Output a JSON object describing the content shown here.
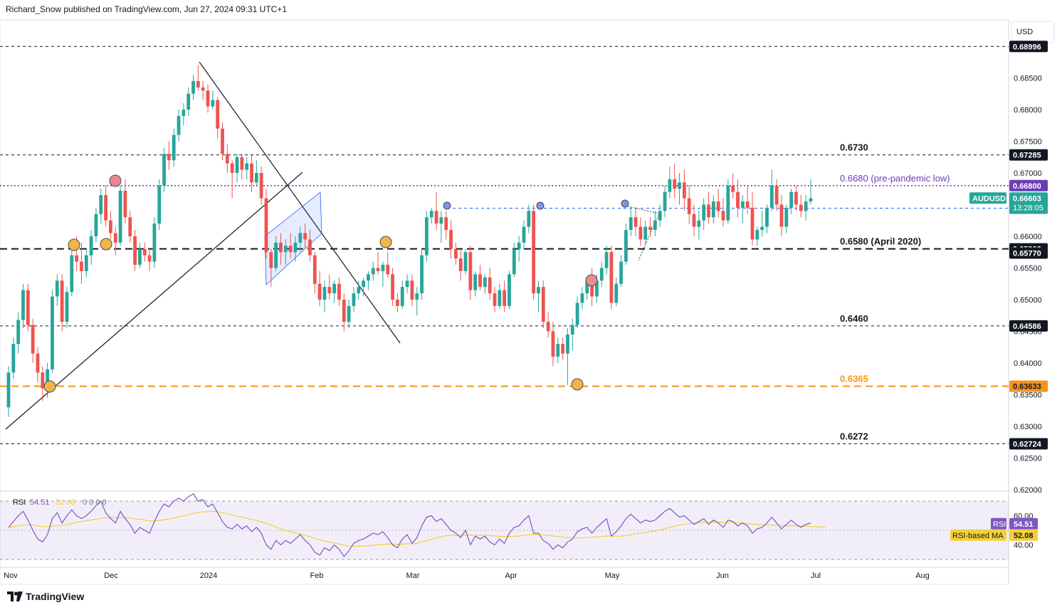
{
  "header": {
    "publisher": "Richard_Snow published on TradingView.com, Jun 27, 2024 09:31 UTC+1"
  },
  "footer": {
    "brand": "TradingView"
  },
  "currency": "USD",
  "colors": {
    "up": "#26a69a",
    "down": "#ef5350",
    "fib_purple": "#6a3db8",
    "orange": "#f7931a",
    "rsi": "#7e57c2",
    "rsi_ma": "#f3d03a",
    "blue_tag": "#2962ff"
  },
  "chart_data": {
    "type": "candlestick",
    "symbol": "AUDUSD",
    "last_price": "0.66603",
    "countdown": "13:28:05",
    "y_range": [
      0.6165,
      0.692
    ],
    "price_ticks": [
      "0.68500",
      "0.68000",
      "0.67500",
      "0.67000",
      "0.66000",
      "0.65500",
      "0.65000",
      "0.64500",
      "0.64000",
      "0.63500",
      "0.63000",
      "0.62500",
      "0.62000"
    ],
    "x_labels": [
      "Nov",
      "Dec",
      "2024",
      "Feb",
      "Mar",
      "Apr",
      "May",
      "Jun",
      "Jul",
      "Aug"
    ],
    "levels": [
      {
        "value": 0.68996,
        "tag": "0.68996",
        "label": "",
        "style": "dashed-thin",
        "color": "#131722"
      },
      {
        "value": 0.67285,
        "tag": "0.67285",
        "label": "0.6730",
        "style": "dashed-thin",
        "color": "#131722"
      },
      {
        "value": 0.668,
        "tag": "0.66800",
        "label": "0.6680 (pre-pandemic low)",
        "style": "dotted",
        "color": "#6a3db8"
      },
      {
        "value": 0.66444,
        "tag": "0.66444",
        "label": "",
        "style": "dashed-blue",
        "color": "#2962ff"
      },
      {
        "value": 0.65802,
        "tag": "0.65802",
        "label": "0.6580 (April 2020)",
        "style": "dashed-thick",
        "color": "#131722"
      },
      {
        "value": 0.64586,
        "tag": "0.64586",
        "label": "0.6460",
        "style": "dashed-thin",
        "color": "#131722"
      },
      {
        "value": 0.63633,
        "tag": "0.63633",
        "label": "0.6365",
        "style": "dashed-orange",
        "color": "#f7931a"
      },
      {
        "value": 0.62724,
        "tag": "0.62724",
        "label": "0.6272",
        "style": "dashed-thin",
        "color": "#131722"
      }
    ],
    "extra_tag": "0.65770",
    "candles": [
      [
        0.633,
        0.6395,
        0.6315,
        0.6385
      ],
      [
        0.6385,
        0.644,
        0.6375,
        0.643
      ],
      [
        0.643,
        0.648,
        0.6415,
        0.6468
      ],
      [
        0.6468,
        0.6525,
        0.6455,
        0.6515
      ],
      [
        0.6515,
        0.6525,
        0.645,
        0.646
      ],
      [
        0.646,
        0.647,
        0.64,
        0.6415
      ],
      [
        0.6415,
        0.6425,
        0.637,
        0.6385
      ],
      [
        0.6385,
        0.6395,
        0.634,
        0.636
      ],
      [
        0.636,
        0.64,
        0.6345,
        0.639
      ],
      [
        0.639,
        0.6515,
        0.6385,
        0.6505
      ],
      [
        0.6505,
        0.654,
        0.649,
        0.653
      ],
      [
        0.653,
        0.654,
        0.645,
        0.6465
      ],
      [
        0.6465,
        0.652,
        0.6455,
        0.6512
      ],
      [
        0.6512,
        0.658,
        0.6505,
        0.657
      ],
      [
        0.657,
        0.66,
        0.6545,
        0.656
      ],
      [
        0.656,
        0.659,
        0.6525,
        0.6545
      ],
      [
        0.6545,
        0.658,
        0.6535,
        0.657
      ],
      [
        0.657,
        0.661,
        0.6555,
        0.66
      ],
      [
        0.66,
        0.6645,
        0.659,
        0.6635
      ],
      [
        0.6635,
        0.6675,
        0.662,
        0.6665
      ],
      [
        0.6665,
        0.668,
        0.6615,
        0.6625
      ],
      [
        0.6625,
        0.664,
        0.6595,
        0.6605
      ],
      [
        0.6605,
        0.6615,
        0.657,
        0.659
      ],
      [
        0.659,
        0.668,
        0.6585,
        0.6672
      ],
      [
        0.6672,
        0.669,
        0.662,
        0.663
      ],
      [
        0.663,
        0.664,
        0.659,
        0.66
      ],
      [
        0.66,
        0.661,
        0.6545,
        0.6555
      ],
      [
        0.6555,
        0.659,
        0.655,
        0.658
      ],
      [
        0.658,
        0.659,
        0.656,
        0.657
      ],
      [
        0.657,
        0.658,
        0.6545,
        0.656
      ],
      [
        0.656,
        0.663,
        0.655,
        0.662
      ],
      [
        0.662,
        0.669,
        0.661,
        0.668
      ],
      [
        0.668,
        0.674,
        0.667,
        0.673
      ],
      [
        0.673,
        0.675,
        0.6705,
        0.672
      ],
      [
        0.672,
        0.677,
        0.671,
        0.676
      ],
      [
        0.676,
        0.68,
        0.675,
        0.679
      ],
      [
        0.679,
        0.681,
        0.6775,
        0.68
      ],
      [
        0.68,
        0.6835,
        0.679,
        0.6825
      ],
      [
        0.6825,
        0.6855,
        0.6815,
        0.6845
      ],
      [
        0.6845,
        0.687,
        0.683,
        0.6835
      ],
      [
        0.6835,
        0.6845,
        0.6815,
        0.683
      ],
      [
        0.683,
        0.684,
        0.6795,
        0.6805
      ],
      [
        0.6805,
        0.683,
        0.68,
        0.6815
      ],
      [
        0.6815,
        0.682,
        0.6755,
        0.677
      ],
      [
        0.677,
        0.678,
        0.672,
        0.673
      ],
      [
        0.673,
        0.6745,
        0.67,
        0.6715
      ],
      [
        0.6715,
        0.672,
        0.666,
        0.67
      ],
      [
        0.67,
        0.673,
        0.6685,
        0.6725
      ],
      [
        0.6725,
        0.673,
        0.669,
        0.6705
      ],
      [
        0.6705,
        0.6725,
        0.669,
        0.6715
      ],
      [
        0.6715,
        0.673,
        0.667,
        0.6685
      ],
      [
        0.6685,
        0.672,
        0.668,
        0.67
      ],
      [
        0.67,
        0.671,
        0.665,
        0.666
      ],
      [
        0.666,
        0.6675,
        0.6565,
        0.6575
      ],
      [
        0.6575,
        0.658,
        0.652,
        0.655
      ],
      [
        0.655,
        0.66,
        0.6545,
        0.659
      ],
      [
        0.659,
        0.6605,
        0.6555,
        0.6575
      ],
      [
        0.6575,
        0.6595,
        0.6555,
        0.6585
      ],
      [
        0.6585,
        0.6605,
        0.6565,
        0.6575
      ],
      [
        0.6575,
        0.66,
        0.656,
        0.659
      ],
      [
        0.659,
        0.6615,
        0.6575,
        0.6605
      ],
      [
        0.6605,
        0.662,
        0.658,
        0.6595
      ],
      [
        0.6595,
        0.661,
        0.656,
        0.657
      ],
      [
        0.657,
        0.6575,
        0.651,
        0.6525
      ],
      [
        0.6525,
        0.6545,
        0.649,
        0.65
      ],
      [
        0.65,
        0.653,
        0.648,
        0.652
      ],
      [
        0.652,
        0.654,
        0.65,
        0.651
      ],
      [
        0.651,
        0.653,
        0.6495,
        0.6525
      ],
      [
        0.6525,
        0.6535,
        0.649,
        0.65
      ],
      [
        0.65,
        0.651,
        0.645,
        0.6465
      ],
      [
        0.6465,
        0.65,
        0.6455,
        0.649
      ],
      [
        0.649,
        0.652,
        0.648,
        0.651
      ],
      [
        0.651,
        0.653,
        0.65,
        0.652
      ],
      [
        0.652,
        0.6535,
        0.6505,
        0.653
      ],
      [
        0.653,
        0.6545,
        0.6515,
        0.654
      ],
      [
        0.654,
        0.656,
        0.653,
        0.655
      ],
      [
        0.655,
        0.6575,
        0.654,
        0.6545
      ],
      [
        0.6545,
        0.656,
        0.652,
        0.6555
      ],
      [
        0.6555,
        0.6575,
        0.6535,
        0.654
      ],
      [
        0.654,
        0.655,
        0.649,
        0.65
      ],
      [
        0.65,
        0.651,
        0.648,
        0.649
      ],
      [
        0.649,
        0.653,
        0.6485,
        0.652
      ],
      [
        0.652,
        0.654,
        0.651,
        0.653
      ],
      [
        0.653,
        0.654,
        0.649,
        0.65
      ],
      [
        0.65,
        0.652,
        0.6475,
        0.651
      ],
      [
        0.651,
        0.658,
        0.65,
        0.657
      ],
      [
        0.657,
        0.664,
        0.656,
        0.663
      ],
      [
        0.663,
        0.6645,
        0.662,
        0.664
      ],
      [
        0.664,
        0.667,
        0.661,
        0.662
      ],
      [
        0.662,
        0.664,
        0.659,
        0.663
      ],
      [
        0.663,
        0.664,
        0.6595,
        0.661
      ],
      [
        0.661,
        0.6625,
        0.6565,
        0.658
      ],
      [
        0.658,
        0.659,
        0.6555,
        0.6565
      ],
      [
        0.6565,
        0.658,
        0.653,
        0.6545
      ],
      [
        0.6545,
        0.658,
        0.654,
        0.6575
      ],
      [
        0.6575,
        0.6585,
        0.65,
        0.6515
      ],
      [
        0.6515,
        0.6545,
        0.6505,
        0.654
      ],
      [
        0.654,
        0.6555,
        0.6515,
        0.652
      ],
      [
        0.652,
        0.654,
        0.651,
        0.6535
      ],
      [
        0.6535,
        0.655,
        0.65,
        0.651
      ],
      [
        0.651,
        0.652,
        0.648,
        0.649
      ],
      [
        0.649,
        0.6525,
        0.6485,
        0.6515
      ],
      [
        0.6515,
        0.653,
        0.648,
        0.649
      ],
      [
        0.649,
        0.6545,
        0.6485,
        0.654
      ],
      [
        0.654,
        0.659,
        0.6535,
        0.658
      ],
      [
        0.658,
        0.66,
        0.656,
        0.659
      ],
      [
        0.659,
        0.6625,
        0.658,
        0.6615
      ],
      [
        0.6615,
        0.665,
        0.6605,
        0.664
      ],
      [
        0.664,
        0.665,
        0.65,
        0.651
      ],
      [
        0.651,
        0.653,
        0.648,
        0.652
      ],
      [
        0.652,
        0.653,
        0.6455,
        0.6465
      ],
      [
        0.6465,
        0.648,
        0.644,
        0.645
      ],
      [
        0.645,
        0.6465,
        0.6395,
        0.641
      ],
      [
        0.641,
        0.644,
        0.64,
        0.643
      ],
      [
        0.643,
        0.644,
        0.6405,
        0.6415
      ],
      [
        0.6415,
        0.6455,
        0.6365,
        0.6445
      ],
      [
        0.6445,
        0.647,
        0.642,
        0.646
      ],
      [
        0.646,
        0.6505,
        0.6455,
        0.6495
      ],
      [
        0.6495,
        0.652,
        0.6485,
        0.651
      ],
      [
        0.651,
        0.6535,
        0.65,
        0.653
      ],
      [
        0.653,
        0.655,
        0.649,
        0.6505
      ],
      [
        0.6505,
        0.654,
        0.6495,
        0.653
      ],
      [
        0.653,
        0.656,
        0.652,
        0.655
      ],
      [
        0.655,
        0.6585,
        0.654,
        0.6575
      ],
      [
        0.6575,
        0.6585,
        0.6485,
        0.6495
      ],
      [
        0.6495,
        0.6535,
        0.649,
        0.6525
      ],
      [
        0.6525,
        0.657,
        0.652,
        0.656
      ],
      [
        0.656,
        0.662,
        0.6555,
        0.661
      ],
      [
        0.661,
        0.6645,
        0.66,
        0.663
      ],
      [
        0.663,
        0.6645,
        0.66,
        0.6615
      ],
      [
        0.6615,
        0.663,
        0.6585,
        0.6595
      ],
      [
        0.6595,
        0.6625,
        0.6585,
        0.6615
      ],
      [
        0.6615,
        0.663,
        0.66,
        0.661
      ],
      [
        0.661,
        0.664,
        0.66,
        0.6625
      ],
      [
        0.6625,
        0.665,
        0.6615,
        0.664
      ],
      [
        0.664,
        0.668,
        0.663,
        0.667
      ],
      [
        0.667,
        0.671,
        0.666,
        0.669
      ],
      [
        0.669,
        0.6715,
        0.666,
        0.6675
      ],
      [
        0.6675,
        0.67,
        0.665,
        0.6685
      ],
      [
        0.6685,
        0.6705,
        0.664,
        0.666
      ],
      [
        0.666,
        0.668,
        0.662,
        0.6635
      ],
      [
        0.6635,
        0.665,
        0.66,
        0.6615
      ],
      [
        0.6615,
        0.664,
        0.6595,
        0.6625
      ],
      [
        0.6625,
        0.666,
        0.661,
        0.665
      ],
      [
        0.665,
        0.667,
        0.662,
        0.663
      ],
      [
        0.663,
        0.6665,
        0.662,
        0.6655
      ],
      [
        0.6655,
        0.6675,
        0.663,
        0.664
      ],
      [
        0.664,
        0.666,
        0.6615,
        0.6625
      ],
      [
        0.6625,
        0.669,
        0.662,
        0.668
      ],
      [
        0.668,
        0.67,
        0.666,
        0.667
      ],
      [
        0.667,
        0.669,
        0.663,
        0.6645
      ],
      [
        0.6645,
        0.6665,
        0.662,
        0.6655
      ],
      [
        0.6655,
        0.668,
        0.6635,
        0.6645
      ],
      [
        0.6645,
        0.667,
        0.6585,
        0.6595
      ],
      [
        0.6595,
        0.6615,
        0.6585,
        0.661
      ],
      [
        0.661,
        0.664,
        0.66,
        0.6615
      ],
      [
        0.6615,
        0.665,
        0.6605,
        0.6645
      ],
      [
        0.6645,
        0.6705,
        0.664,
        0.668
      ],
      [
        0.668,
        0.669,
        0.664,
        0.665
      ],
      [
        0.665,
        0.6665,
        0.66,
        0.6615
      ],
      [
        0.6615,
        0.665,
        0.6605,
        0.6645
      ],
      [
        0.6645,
        0.6675,
        0.6635,
        0.667
      ],
      [
        0.667,
        0.668,
        0.664,
        0.665
      ],
      [
        0.665,
        0.6665,
        0.663,
        0.664
      ],
      [
        0.664,
        0.6665,
        0.6625,
        0.6655
      ],
      [
        0.6655,
        0.669,
        0.665,
        0.666
      ]
    ],
    "rsi_indicator": {
      "header": "RSI",
      "rsi_value": "54.51",
      "ma_value": "52.08",
      "params": "0 0 0 0",
      "levels": [
        "60.00",
        "40.00"
      ],
      "tag_rsi": "RSI",
      "tag_ma": "RSI-based MA",
      "rsi": [
        52,
        56,
        60,
        63,
        57,
        50,
        44,
        42,
        47,
        58,
        62,
        55,
        60,
        64,
        60,
        58,
        60,
        63,
        67,
        70,
        62,
        58,
        55,
        63,
        58,
        54,
        48,
        52,
        50,
        48,
        56,
        63,
        68,
        66,
        70,
        72,
        70,
        73,
        75,
        70,
        71,
        66,
        68,
        62,
        56,
        52,
        51,
        54,
        51,
        53,
        49,
        52,
        48,
        40,
        37,
        43,
        40,
        43,
        41,
        44,
        47,
        43,
        40,
        35,
        33,
        38,
        36,
        40,
        37,
        32,
        36,
        41,
        43,
        44,
        46,
        48,
        47,
        49,
        45,
        40,
        38,
        44,
        47,
        41,
        45,
        53,
        59,
        60,
        56,
        58,
        54,
        50,
        48,
        45,
        50,
        40,
        46,
        44,
        46,
        42,
        40,
        44,
        41,
        48,
        52,
        53,
        57,
        60,
        48,
        48,
        43,
        41,
        37,
        40,
        38,
        42,
        44,
        49,
        51,
        52,
        48,
        52,
        55,
        58,
        46,
        49,
        53,
        58,
        61,
        58,
        55,
        57,
        56,
        57,
        60,
        63,
        65,
        62,
        59,
        60,
        57,
        54,
        56,
        58,
        54,
        57,
        55,
        52,
        57,
        56,
        53,
        55,
        53,
        48,
        51,
        52,
        55,
        59,
        55,
        51,
        54,
        57,
        54,
        52,
        54,
        55
      ],
      "rsi_ma": [
        52,
        52.5,
        53,
        53.5,
        53.7,
        53.5,
        53,
        52.6,
        52.5,
        52.8,
        53.2,
        53.5,
        54,
        54.8,
        55.5,
        56,
        56.5,
        57,
        57.6,
        58.2,
        58.5,
        58.7,
        58.6,
        58.7,
        58.6,
        58.4,
        57.9,
        57.5,
        57,
        56.5,
        56.5,
        56.7,
        57.2,
        57.7,
        58.4,
        59.2,
        59.9,
        60.7,
        61.5,
        62.1,
        62.6,
        62.8,
        63,
        62.7,
        62.1,
        61.3,
        60.5,
        59.8,
        59,
        58.2,
        57.4,
        56.7,
        55.8,
        54.6,
        53.3,
        52.2,
        51,
        49.9,
        48.9,
        48.1,
        47.4,
        46.5,
        45.6,
        44.5,
        43.5,
        42.7,
        41.8,
        41.2,
        40.6,
        39.8,
        39.3,
        39.1,
        39.1,
        39.2,
        39.4,
        39.7,
        40,
        40.4,
        40.6,
        40.5,
        40.3,
        40.5,
        40.8,
        40.8,
        41.1,
        41.8,
        42.8,
        43.9,
        44.8,
        45.7,
        46.3,
        46.6,
        46.7,
        46.6,
        46.8,
        46.6,
        46.6,
        46.6,
        46.6,
        46.4,
        46.1,
        45.9,
        45.7,
        45.7,
        45.9,
        46.1,
        46.5,
        47,
        47,
        47,
        46.8,
        46.5,
        46.1,
        45.7,
        45.4,
        45.1,
        44.9,
        44.8,
        44.9,
        45.1,
        45.2,
        45.4,
        45.7,
        46.1,
        46,
        45.9,
        46,
        46.4,
        47,
        47.6,
        48,
        48.5,
        49,
        49.5,
        50.2,
        51,
        52,
        52.8,
        53.5,
        54.1,
        54.6,
        54.8,
        55.1,
        55.4,
        55.5,
        55.6,
        55.6,
        55.5,
        55.4,
        55.3,
        55.1,
        54.9,
        54.6,
        54.2,
        54,
        53.7,
        53.5,
        53.5,
        53.4,
        53.2,
        53.1,
        53.1,
        53,
        53,
        52.8,
        52.6,
        52.5,
        52.3,
        52.08
      ]
    }
  }
}
